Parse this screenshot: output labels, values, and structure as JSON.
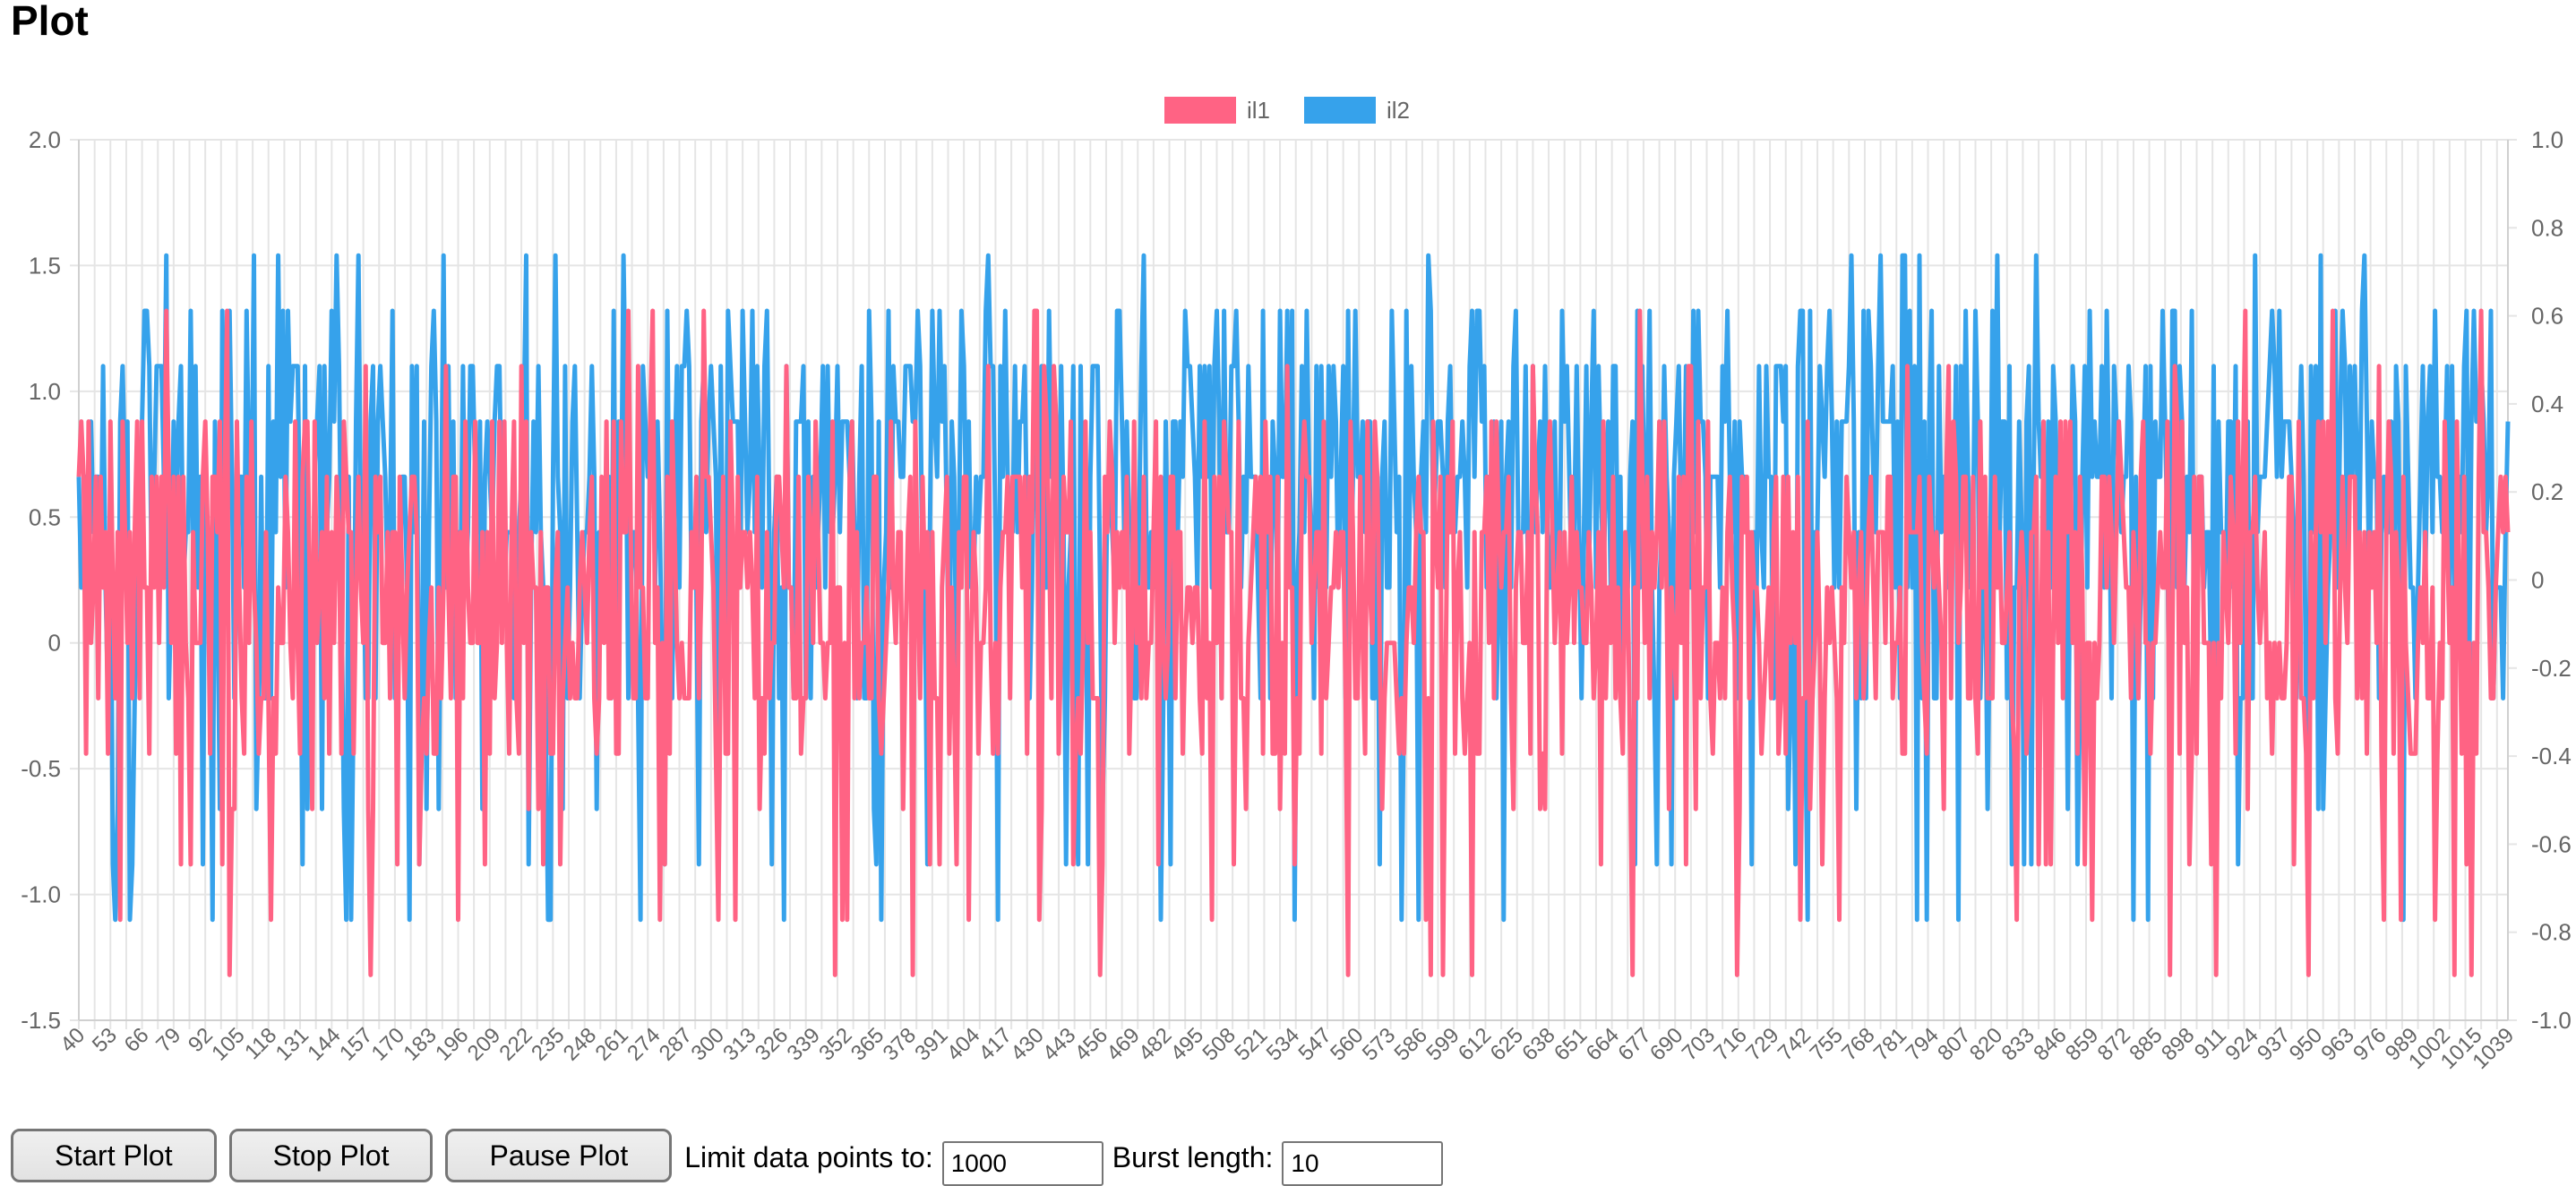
{
  "page": {
    "title": "Plot"
  },
  "controls": {
    "start_label": "Start Plot",
    "stop_label": "Stop Plot",
    "pause_label": "Pause Plot",
    "limit_label": "Limit data points to:",
    "limit_value": "1000",
    "burst_label": "Burst length:",
    "burst_value": "10"
  },
  "chart_data": {
    "type": "line",
    "legend": {
      "position": "top-center",
      "entries": [
        {
          "name": "il1",
          "color": "#ff6384"
        },
        {
          "name": "il2",
          "color": "#36a2eb"
        }
      ]
    },
    "x": {
      "start": 40,
      "end": 1039,
      "tick_labels": [
        "40",
        "53",
        "66",
        "79",
        "92",
        "105",
        "118",
        "131",
        "144",
        "157",
        "170",
        "183",
        "196",
        "209",
        "222",
        "235",
        "248",
        "261",
        "274",
        "287",
        "300",
        "313",
        "326",
        "339",
        "352",
        "365",
        "378",
        "391",
        "404",
        "417",
        "430",
        "443",
        "456",
        "469",
        "482",
        "495",
        "508",
        "521",
        "534",
        "547",
        "560",
        "573",
        "586",
        "599",
        "612",
        "625",
        "638",
        "651",
        "664",
        "677",
        "690",
        "703",
        "716",
        "729",
        "742",
        "755",
        "768",
        "781",
        "794",
        "807",
        "820",
        "833",
        "846",
        "859",
        "872",
        "885",
        "898",
        "911",
        "924",
        "937",
        "950",
        "963",
        "976",
        "989",
        "1002",
        "1015",
        "1039"
      ]
    },
    "y_left": {
      "min": -1.5,
      "max": 2.0,
      "ticks": [
        "2.0",
        "1.5",
        "1.0",
        "0.5",
        "0",
        "-0.5",
        "-1.0",
        "-1.5"
      ]
    },
    "y_right": {
      "min": -1.0,
      "max": 1.0,
      "ticks": [
        "1.0",
        "0.8",
        "0.6",
        "0.4",
        "0.2",
        "0",
        "-0.2",
        "-0.4",
        "-0.6",
        "-0.8",
        "-1.0"
      ]
    },
    "grid": true,
    "series": [
      {
        "name": "il1",
        "color": "#ff6384",
        "axis": "left",
        "levels": [
          -1.32,
          -1.1,
          -0.88,
          -0.66,
          -0.44,
          -0.22,
          0,
          0.22,
          0.44,
          0.66,
          0.88,
          1.1,
          1.32
        ],
        "sample_count": 1000,
        "seed": 7
      },
      {
        "name": "il2",
        "color": "#36a2eb",
        "axis": "left",
        "levels": [
          -1.1,
          -0.88,
          -0.66,
          -0.22,
          0.22,
          0.44,
          0.66,
          0.88,
          1.1,
          1.32,
          1.54
        ],
        "sample_count": 1000,
        "seed": 13
      }
    ]
  }
}
